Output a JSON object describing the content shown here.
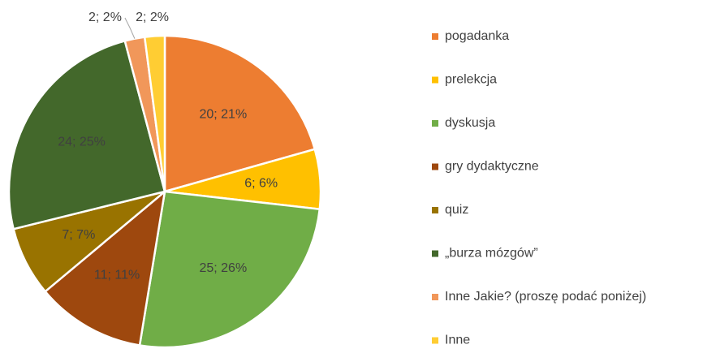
{
  "chart_data": {
    "type": "pie",
    "categories": [
      "pogadanka",
      "prelekcja",
      "dyskusja",
      "gry dydaktyczne",
      "quiz",
      "„burza mózgów”",
      "Inne Jakie? (proszę podać poniżej)",
      "Inne"
    ],
    "values": [
      20,
      6,
      25,
      11,
      7,
      24,
      2,
      2
    ],
    "value_labels": [
      "20; 21%",
      "6; 6%",
      "25; 26%",
      "11; 11%",
      "7; 7%",
      "24; 25%",
      "2; 2%",
      "2; 2%"
    ],
    "colors": [
      "#ED7D31",
      "#FFC000",
      "#70AD47",
      "#9E480E",
      "#997300",
      "#43682B",
      "#F1975A",
      "#FFCD33"
    ],
    "legend": "right"
  }
}
